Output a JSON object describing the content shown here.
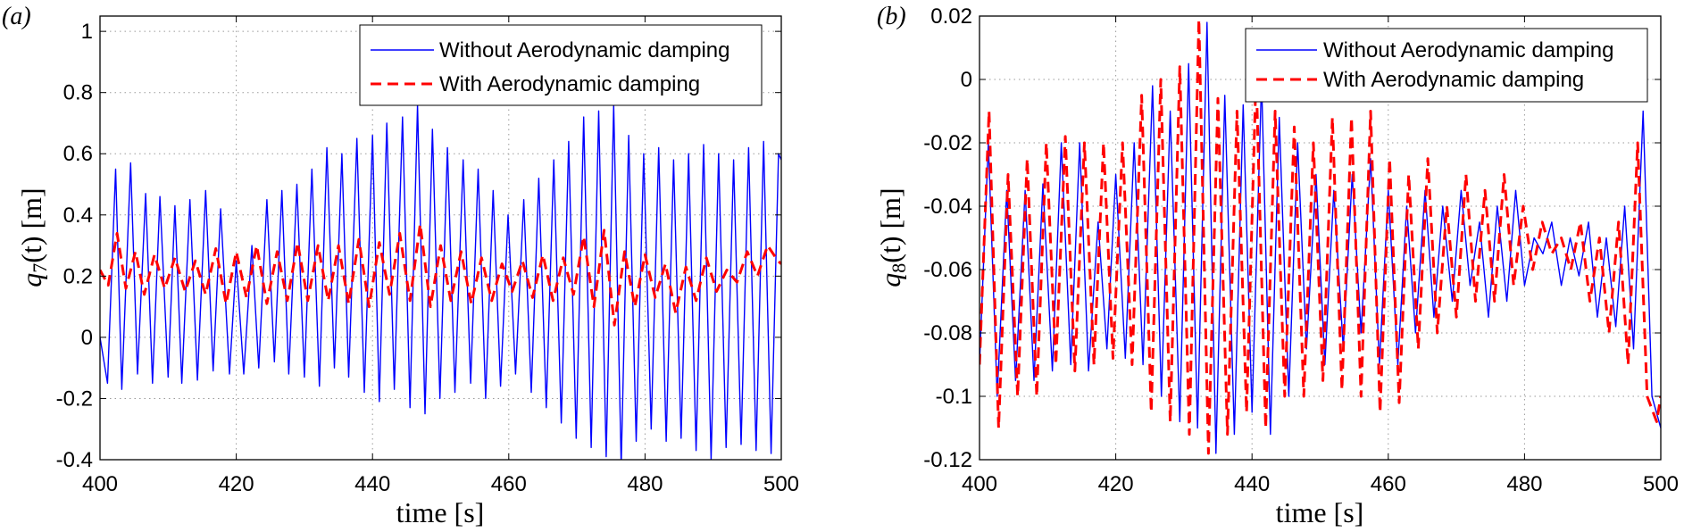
{
  "chart_data": [
    {
      "type": "line",
      "panel_label": "(a)",
      "title": "",
      "xlabel": "time [s]",
      "ylabel_var": "q",
      "ylabel_sub": "7",
      "ylabel_rest": "(t) [m]",
      "xlim": [
        400,
        500
      ],
      "ylim": [
        -0.4,
        1.05
      ],
      "xticks": [
        400,
        420,
        440,
        460,
        480,
        500
      ],
      "xtick_labels": [
        "400",
        "420",
        "440",
        "460",
        "480",
        "500"
      ],
      "yticks": [
        -0.4,
        -0.2,
        0,
        0.2,
        0.4,
        0.6,
        0.8,
        1
      ],
      "ytick_labels": [
        "-0.4",
        "-0.2",
        "0",
        "0.2",
        "0.4",
        "0.6",
        "0.8",
        "1"
      ],
      "grid": true,
      "legend_position": "top-right",
      "series": [
        {
          "name": "Without Aerodynamic damping",
          "color": "#0000ff",
          "style": "solid",
          "x": [
            400,
            401.1,
            402.3,
            403.2,
            404.5,
            405.5,
            406.7,
            407.7,
            408.8,
            410,
            411,
            412,
            413.2,
            414.3,
            415.5,
            416.6,
            417.7,
            419,
            420,
            421.1,
            422.3,
            423.3,
            424.5,
            425.6,
            426.7,
            427.7,
            428.9,
            430,
            431.1,
            432.2,
            433.3,
            434.4,
            435.5,
            436.5,
            437.7,
            438.8,
            440,
            441,
            442.1,
            443.2,
            444.4,
            445.5,
            446.6,
            447.7,
            448.8,
            449.9,
            451,
            452.1,
            453.3,
            454.4,
            455.5,
            456.6,
            457.7,
            458.8,
            459.9,
            461,
            462.2,
            463.3,
            464.4,
            465.5,
            466.6,
            467.7,
            468.8,
            469.9,
            471,
            472.1,
            473.2,
            474.3,
            475.4,
            476.5,
            477.6,
            478.7,
            479.8,
            480.9,
            482,
            483.1,
            484.2,
            485.3,
            486.4,
            487.5,
            488.6,
            489.7,
            490.8,
            491.9,
            493,
            494.1,
            495.2,
            496.3,
            497.4,
            498.5,
            499.6,
            500
          ],
          "y": [
            0.0,
            -0.15,
            0.55,
            -0.17,
            0.57,
            -0.12,
            0.47,
            -0.15,
            0.46,
            -0.13,
            0.43,
            -0.15,
            0.45,
            -0.14,
            0.48,
            -0.11,
            0.42,
            -0.12,
            0.25,
            -0.12,
            0.3,
            -0.1,
            0.45,
            -0.08,
            0.48,
            -0.12,
            0.5,
            -0.13,
            0.55,
            -0.16,
            0.62,
            -0.1,
            0.6,
            -0.13,
            0.65,
            -0.18,
            0.66,
            -0.21,
            0.7,
            -0.17,
            0.72,
            -0.23,
            0.76,
            -0.25,
            0.68,
            -0.2,
            0.62,
            -0.18,
            0.58,
            -0.15,
            0.55,
            -0.2,
            0.48,
            -0.16,
            0.4,
            -0.12,
            0.45,
            -0.18,
            0.52,
            -0.23,
            0.58,
            -0.28,
            0.64,
            -0.33,
            0.72,
            -0.36,
            0.74,
            -0.39,
            0.76,
            -0.42,
            0.66,
            -0.34,
            0.6,
            -0.3,
            0.62,
            -0.34,
            0.58,
            -0.33,
            0.6,
            -0.37,
            0.63,
            -0.4,
            0.6,
            -0.36,
            0.58,
            -0.35,
            0.62,
            -0.37,
            0.64,
            -0.38,
            0.6,
            0.58
          ]
        },
        {
          "name": "With Aerodynamic damping",
          "color": "#ff0000",
          "style": "dashed",
          "x": [
            400,
            401.2,
            402.5,
            403.8,
            405.2,
            406.5,
            408,
            409.5,
            411,
            412.5,
            414,
            415.5,
            417,
            418.5,
            420,
            421.5,
            423,
            424.5,
            426,
            427.5,
            429,
            430.5,
            432,
            433.5,
            435,
            436.5,
            438,
            439.5,
            441,
            442.5,
            444,
            445.5,
            447,
            448.5,
            450,
            451.5,
            453,
            454.5,
            456,
            457.5,
            459,
            460.5,
            462,
            463.5,
            465,
            466.5,
            468,
            469.5,
            471,
            472.5,
            474,
            475.5,
            477,
            478.5,
            480,
            481.5,
            483,
            484.5,
            486,
            487.5,
            489,
            490.5,
            492,
            493.5,
            495,
            496.5,
            498,
            499.5,
            500
          ],
          "y": [
            0.22,
            0.17,
            0.34,
            0.16,
            0.28,
            0.14,
            0.27,
            0.16,
            0.26,
            0.15,
            0.25,
            0.14,
            0.29,
            0.11,
            0.28,
            0.13,
            0.3,
            0.11,
            0.28,
            0.12,
            0.31,
            0.12,
            0.3,
            0.12,
            0.3,
            0.11,
            0.32,
            0.1,
            0.31,
            0.14,
            0.34,
            0.12,
            0.37,
            0.1,
            0.3,
            0.12,
            0.28,
            0.11,
            0.26,
            0.12,
            0.24,
            0.15,
            0.25,
            0.13,
            0.27,
            0.12,
            0.26,
            0.14,
            0.33,
            0.1,
            0.35,
            0.04,
            0.28,
            0.1,
            0.27,
            0.13,
            0.24,
            0.08,
            0.23,
            0.12,
            0.26,
            0.15,
            0.22,
            0.18,
            0.28,
            0.2,
            0.3,
            0.25,
            0.24
          ]
        }
      ]
    },
    {
      "type": "line",
      "panel_label": "(b)",
      "title": "",
      "xlabel": "time [s]",
      "ylabel_var": "q",
      "ylabel_sub": "8",
      "ylabel_rest": "(t) [m]",
      "xlim": [
        400,
        500
      ],
      "ylim": [
        -0.12,
        0.02
      ],
      "xticks": [
        400,
        420,
        440,
        460,
        480,
        500
      ],
      "xtick_labels": [
        "400",
        "420",
        "440",
        "460",
        "480",
        "500"
      ],
      "yticks": [
        -0.12,
        -0.1,
        -0.08,
        -0.06,
        -0.04,
        -0.02,
        0,
        0.02
      ],
      "ytick_labels": [
        "-0.12",
        "-0.1",
        "-0.08",
        "-0.06",
        "-0.04",
        "-0.02",
        "0",
        "0.02"
      ],
      "grid": true,
      "legend_position": "top-right",
      "series": [
        {
          "name": "Without Aerodynamic damping",
          "color": "#0000ff",
          "style": "solid",
          "x": [
            400,
            401.3,
            402.6,
            404,
            405.3,
            406.7,
            408,
            409.3,
            410.7,
            412,
            413.4,
            414.7,
            416,
            417.4,
            418.7,
            420,
            421.4,
            422.7,
            424,
            425.4,
            426.7,
            428,
            429.4,
            430.7,
            432,
            433.4,
            434.7,
            436,
            437.4,
            438.7,
            440,
            441.4,
            442.7,
            444,
            445.4,
            446.7,
            448,
            449.4,
            450.7,
            452,
            453.4,
            454.7,
            456,
            457.4,
            458.7,
            460,
            461.4,
            462.7,
            464,
            465.4,
            466.7,
            468,
            469.4,
            470.7,
            472,
            473.4,
            474.7,
            476,
            477.4,
            478.7,
            480,
            481.4,
            482.7,
            484,
            485.4,
            486.7,
            488,
            489.4,
            490.7,
            492,
            493.4,
            494.7,
            496,
            497.4,
            498.7,
            500
          ],
          "y": [
            -0.09,
            -0.02,
            -0.1,
            -0.035,
            -0.095,
            -0.035,
            -0.095,
            -0.033,
            -0.092,
            -0.02,
            -0.09,
            -0.02,
            -0.092,
            -0.045,
            -0.085,
            -0.03,
            -0.088,
            -0.02,
            -0.09,
            -0.002,
            -0.1,
            -0.01,
            -0.108,
            0.005,
            -0.11,
            0.018,
            -0.118,
            -0.005,
            -0.112,
            -0.008,
            -0.105,
            0.0,
            -0.112,
            -0.012,
            -0.1,
            -0.02,
            -0.085,
            -0.03,
            -0.09,
            -0.035,
            -0.085,
            -0.03,
            -0.08,
            -0.025,
            -0.09,
            -0.035,
            -0.09,
            -0.04,
            -0.08,
            -0.035,
            -0.075,
            -0.04,
            -0.07,
            -0.035,
            -0.065,
            -0.045,
            -0.075,
            -0.04,
            -0.07,
            -0.035,
            -0.065,
            -0.05,
            -0.055,
            -0.045,
            -0.065,
            -0.05,
            -0.062,
            -0.045,
            -0.075,
            -0.05,
            -0.078,
            -0.04,
            -0.085,
            -0.01,
            -0.1,
            -0.11
          ]
        },
        {
          "name": "With Aerodynamic damping",
          "color": "#ff0000",
          "style": "dashed",
          "x": [
            400,
            401.4,
            402.8,
            404.2,
            405.6,
            407,
            408.4,
            409.8,
            411.2,
            412.6,
            414,
            415.4,
            416.8,
            418.2,
            419.6,
            421,
            422.4,
            423.8,
            425.2,
            426.6,
            428,
            429.4,
            430.8,
            432.2,
            433.6,
            435,
            436.4,
            437.8,
            439.2,
            440.6,
            442,
            443.4,
            444.8,
            446.2,
            447.6,
            449,
            450.4,
            451.8,
            453.2,
            454.6,
            456,
            457.4,
            458.8,
            460.2,
            461.6,
            463,
            464.4,
            465.8,
            467.2,
            468.6,
            470,
            471.4,
            472.8,
            474.2,
            475.6,
            477,
            478.4,
            479.8,
            481.2,
            482.6,
            484,
            485.4,
            486.8,
            488.2,
            489.6,
            491,
            492.4,
            493.8,
            495.2,
            496.6,
            498,
            499.4,
            500
          ],
          "y": [
            -0.09,
            -0.01,
            -0.11,
            -0.03,
            -0.1,
            -0.025,
            -0.1,
            -0.02,
            -0.09,
            -0.018,
            -0.092,
            -0.02,
            -0.09,
            -0.02,
            -0.088,
            -0.02,
            -0.09,
            -0.005,
            -0.105,
            0.0,
            -0.108,
            0.004,
            -0.112,
            0.019,
            -0.118,
            -0.006,
            -0.112,
            -0.01,
            -0.105,
            0.002,
            -0.11,
            -0.01,
            -0.1,
            -0.015,
            -0.1,
            -0.02,
            -0.095,
            -0.012,
            -0.098,
            -0.012,
            -0.1,
            -0.01,
            -0.105,
            -0.025,
            -0.102,
            -0.03,
            -0.085,
            -0.025,
            -0.08,
            -0.04,
            -0.075,
            -0.03,
            -0.07,
            -0.035,
            -0.07,
            -0.03,
            -0.065,
            -0.04,
            -0.06,
            -0.045,
            -0.055,
            -0.05,
            -0.06,
            -0.045,
            -0.07,
            -0.05,
            -0.08,
            -0.045,
            -0.09,
            -0.02,
            -0.1,
            -0.108,
            -0.1
          ]
        }
      ]
    }
  ]
}
